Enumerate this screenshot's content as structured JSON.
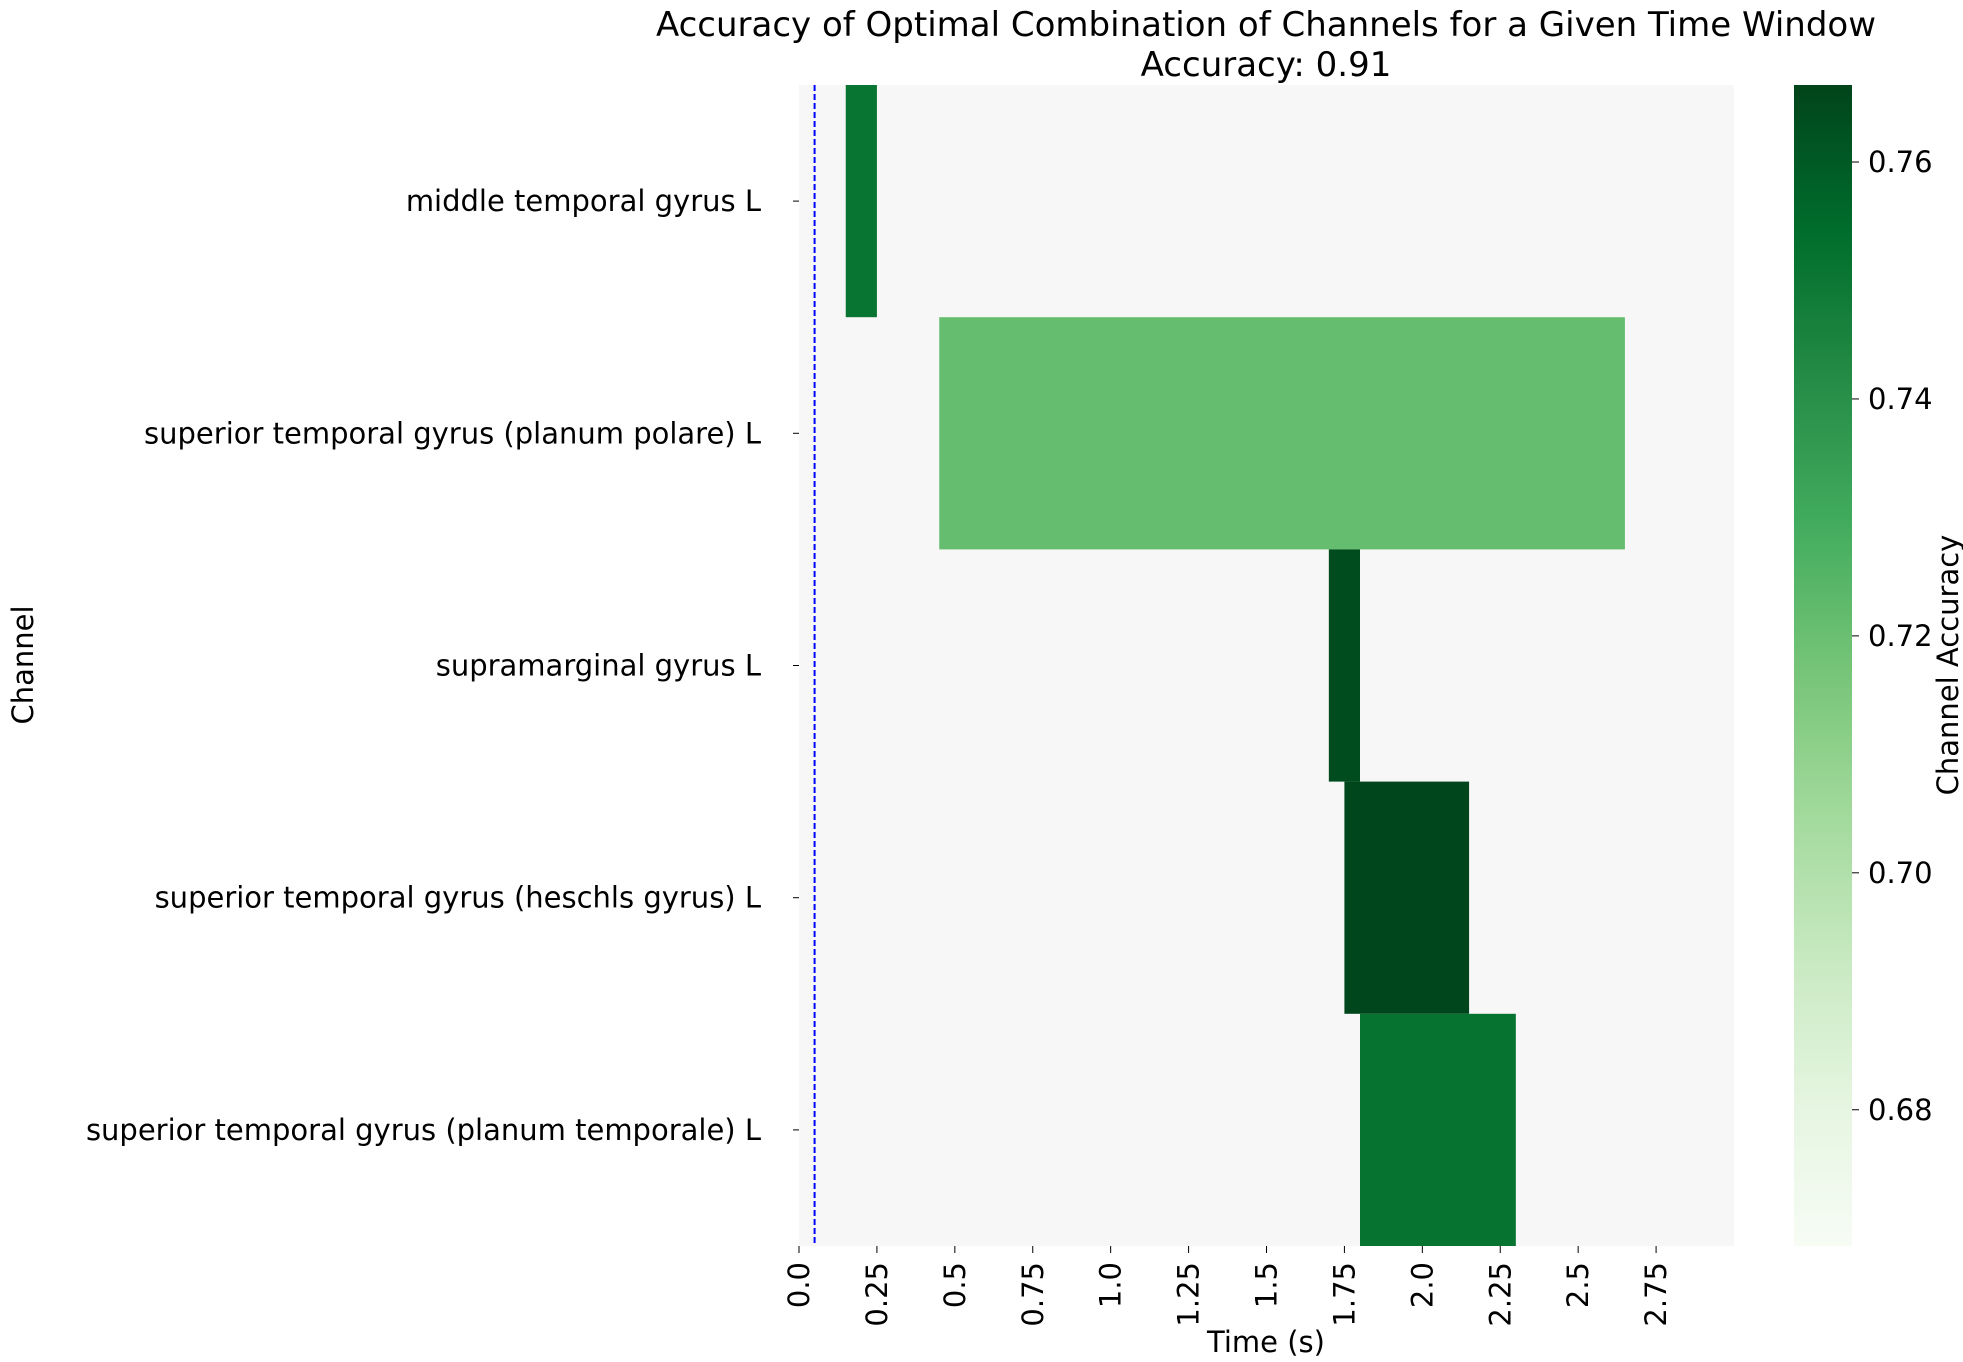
{
  "chart_data": {
    "type": "heatmap",
    "title": "Accuracy of Optimal Combination of Channels for a Given Time Window",
    "subtitle": "Accuracy: 0.91",
    "xlabel": "Time (s)",
    "ylabel": "Channel",
    "xlim": [
      0.0,
      3.0
    ],
    "x_ticks": [
      {
        "value": 0.0,
        "label": "0.0"
      },
      {
        "value": 0.25,
        "label": "0.25"
      },
      {
        "value": 0.5,
        "label": "0.5"
      },
      {
        "value": 0.75,
        "label": "0.75"
      },
      {
        "value": 1.0,
        "label": "1.0"
      },
      {
        "value": 1.25,
        "label": "1.25"
      },
      {
        "value": 1.5,
        "label": "1.5"
      },
      {
        "value": 1.75,
        "label": "1.75"
      },
      {
        "value": 2.0,
        "label": "2.0"
      },
      {
        "value": 2.25,
        "label": "2.25"
      },
      {
        "value": 2.5,
        "label": "2.5"
      },
      {
        "value": 2.75,
        "label": "2.75"
      }
    ],
    "channels": [
      "middle temporal gyrus L",
      "superior temporal gyrus (planum polare) L",
      "supramarginal gyrus L",
      "superior temporal gyrus (heschls gyrus) L",
      "superior temporal gyrus (planum temporale) L"
    ],
    "segments": [
      {
        "channel": 0,
        "start": 0.15,
        "end": 0.25,
        "accuracy": 0.751
      },
      {
        "channel": 1,
        "start": 0.45,
        "end": 2.65,
        "accuracy": 0.721
      },
      {
        "channel": 2,
        "start": 1.7,
        "end": 1.8,
        "accuracy": 0.764
      },
      {
        "channel": 3,
        "start": 1.75,
        "end": 2.15,
        "accuracy": 0.766
      },
      {
        "channel": 4,
        "start": 1.8,
        "end": 2.3,
        "accuracy": 0.752
      }
    ],
    "marker_line": {
      "x": 0.05,
      "color": "#0000ff",
      "style": "dashed"
    },
    "background_color": "#f7f7f7",
    "colorbar": {
      "label": "Channel Accuracy",
      "colormap": "Greens",
      "range": [
        0.6685,
        0.7665
      ],
      "ticks": [
        {
          "value": 0.68,
          "label": "0.68"
        },
        {
          "value": 0.7,
          "label": "0.70"
        },
        {
          "value": 0.72,
          "label": "0.72"
        },
        {
          "value": 0.74,
          "label": "0.74"
        },
        {
          "value": 0.76,
          "label": "0.76"
        }
      ],
      "stops": [
        "#f7fcf5",
        "#e5f5e0",
        "#c7e9c0",
        "#a1d99b",
        "#74c476",
        "#41ab5d",
        "#238b45",
        "#006d2c",
        "#00441b"
      ]
    }
  }
}
